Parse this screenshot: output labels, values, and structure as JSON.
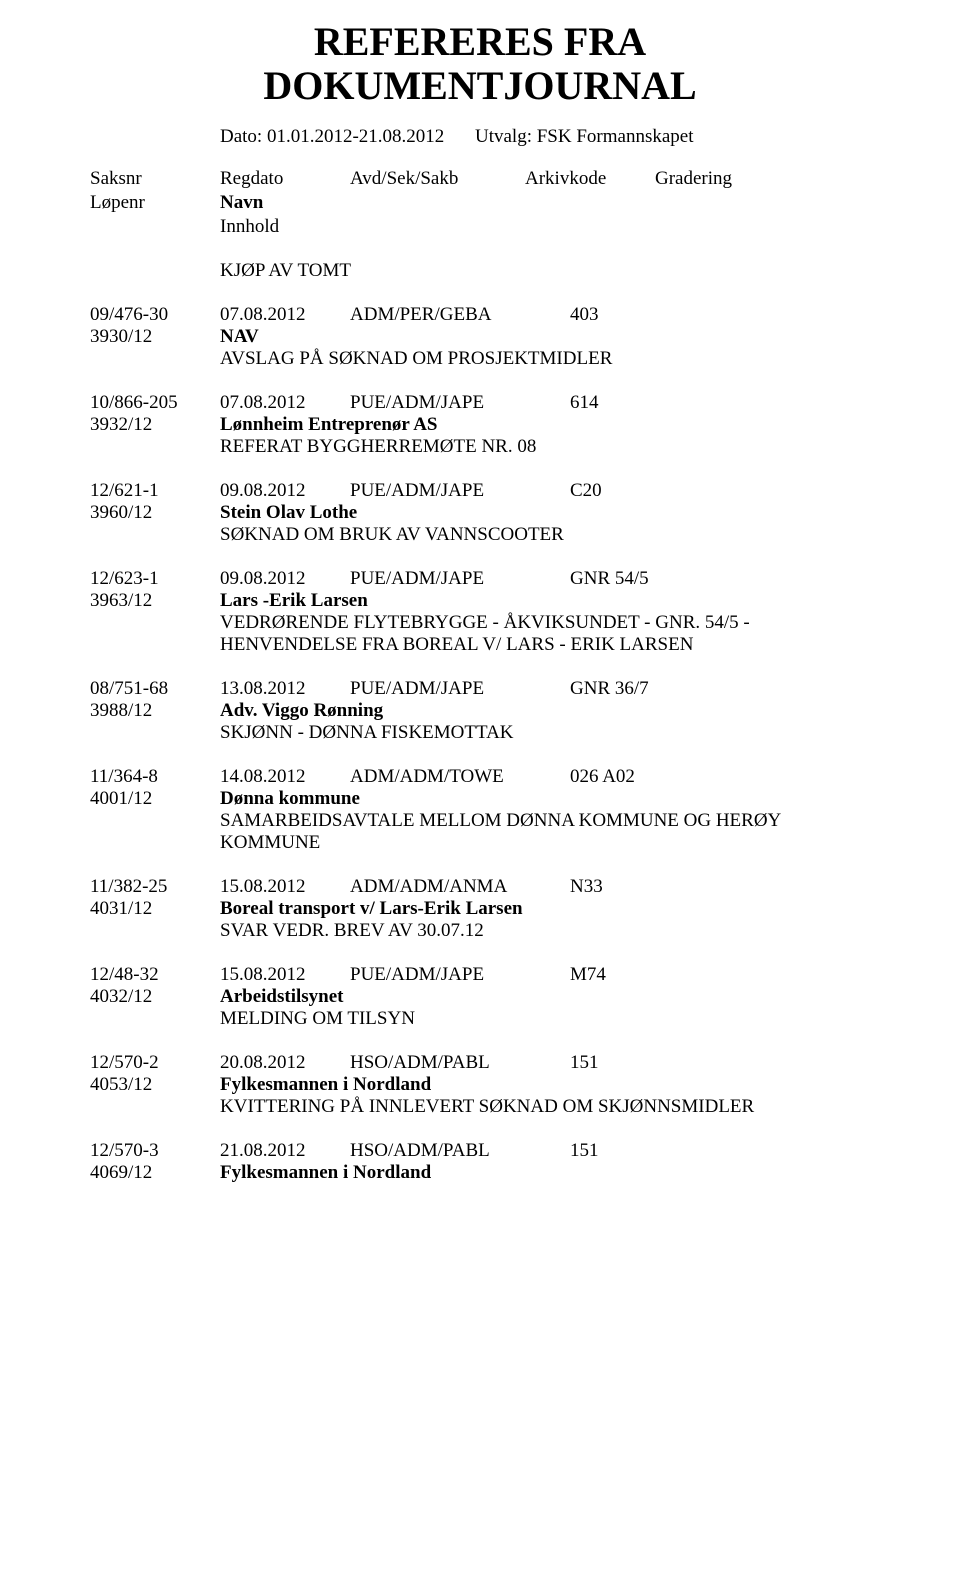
{
  "title_line1": "REFERERES FRA",
  "title_line2": "DOKUMENTJOURNAL",
  "meta": {
    "dato_label": "Dato: 01.01.2012-21.08.2012",
    "utvalg_label": "Utvalg: FSK Formannskapet"
  },
  "headers": {
    "saksnr": "Saksnr",
    "regdato": "Regdato",
    "avd": "Avd/Sek/Sakb",
    "arkiv": "Arkivkode",
    "grad": "Gradering",
    "lopenr": "Løpenr",
    "navn": "Navn",
    "innhold": "Innhold"
  },
  "section_title": "KJØP AV TOMT",
  "entries": [
    {
      "saksnr": "09/476-30",
      "regdato": "07.08.2012",
      "avd": "ADM/PER/GEBA",
      "kode": "403",
      "lopenr": "3930/12",
      "navn": "NAV",
      "innhold": "AVSLAG PÅ SØKNAD OM PROSJEKTMIDLER"
    },
    {
      "saksnr": "10/866-205",
      "regdato": "07.08.2012",
      "avd": "PUE/ADM/JAPE",
      "kode": "614",
      "lopenr": "3932/12",
      "navn": "Lønnheim Entreprenør AS",
      "innhold": "REFERAT BYGGHERREMØTE NR. 08"
    },
    {
      "saksnr": "12/621-1",
      "regdato": "09.08.2012",
      "avd": "PUE/ADM/JAPE",
      "kode": "C20",
      "lopenr": "3960/12",
      "navn": "Stein Olav Lothe",
      "innhold": "SØKNAD OM BRUK AV VANNSCOOTER"
    },
    {
      "saksnr": "12/623-1",
      "regdato": "09.08.2012",
      "avd": "PUE/ADM/JAPE",
      "kode": "GNR 54/5",
      "lopenr": "3963/12",
      "navn": "Lars -Erik Larsen",
      "innhold": "VEDRØRENDE  FLYTEBRYGGE - ÅKVIKSUNDET - GNR. 54/5 - HENVENDELSE FRA BOREAL V/ LARS - ERIK LARSEN"
    },
    {
      "saksnr": "08/751-68",
      "regdato": "13.08.2012",
      "avd": "PUE/ADM/JAPE",
      "kode": "GNR 36/7",
      "lopenr": "3988/12",
      "navn": "Adv. Viggo Rønning",
      "innhold": "SKJØNN - DØNNA FISKEMOTTAK"
    },
    {
      "saksnr": "11/364-8",
      "regdato": "14.08.2012",
      "avd": "ADM/ADM/TOWE",
      "kode": "026 A02",
      "lopenr": "4001/12",
      "navn": "Dønna kommune",
      "innhold": "SAMARBEIDSAVTALE MELLOM DØNNA KOMMUNE OG HERØY KOMMUNE"
    },
    {
      "saksnr": "11/382-25",
      "regdato": "15.08.2012",
      "avd": "ADM/ADM/ANMA",
      "kode": "N33",
      "lopenr": "4031/12",
      "navn": "Boreal transport v/ Lars-Erik Larsen",
      "innhold": "SVAR VEDR. BREV AV 30.07.12"
    },
    {
      "saksnr": "12/48-32",
      "regdato": "15.08.2012",
      "avd": "PUE/ADM/JAPE",
      "kode": "M74",
      "lopenr": "4032/12",
      "navn": "Arbeidstilsynet",
      "innhold": "MELDING OM TILSYN"
    },
    {
      "saksnr": "12/570-2",
      "regdato": "20.08.2012",
      "avd": "HSO/ADM/PABL",
      "kode": "151",
      "lopenr": "4053/12",
      "navn": "Fylkesmannen i Nordland",
      "innhold": "KVITTERING PÅ INNLEVERT SØKNAD OM SKJØNNSMIDLER"
    },
    {
      "saksnr": "12/570-3",
      "regdato": "21.08.2012",
      "avd": "HSO/ADM/PABL",
      "kode": "151",
      "lopenr": "4069/12",
      "navn": "Fylkesmannen i Nordland",
      "innhold": ""
    }
  ],
  "style": {
    "background_color": "#ffffff",
    "text_color": "#000000",
    "title_fontsize": 40,
    "body_fontsize": 19,
    "font_family": "Times New Roman"
  }
}
